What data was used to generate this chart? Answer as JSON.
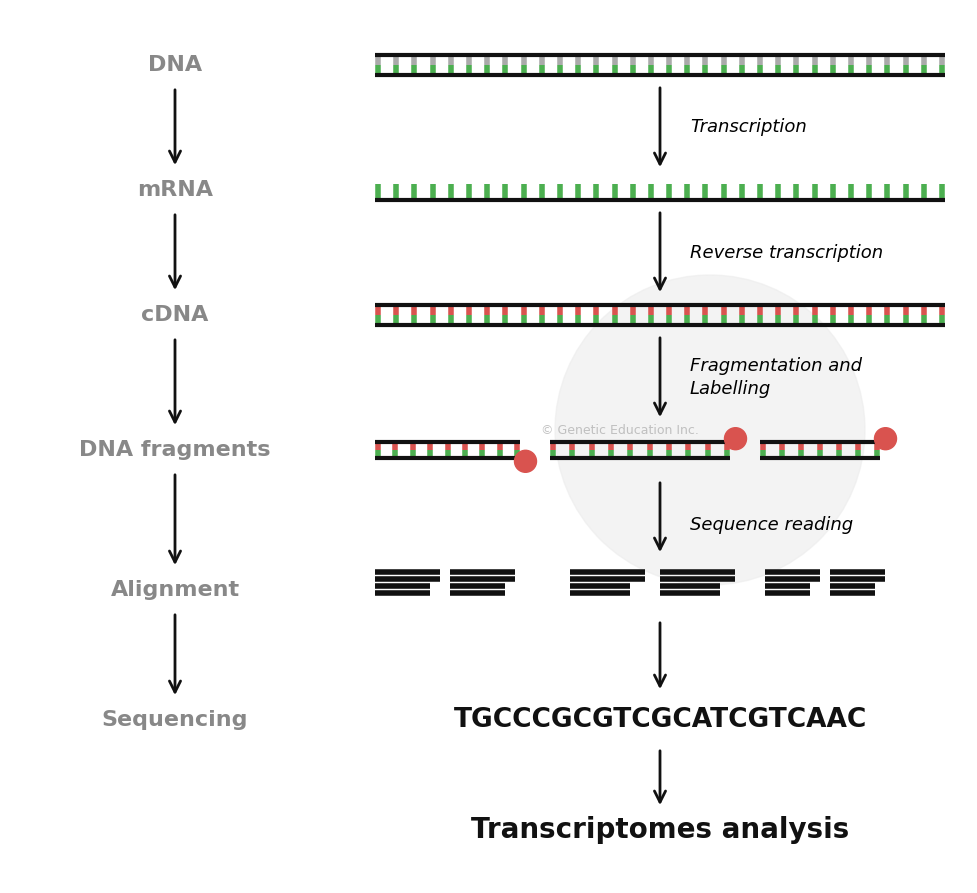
{
  "bg_color": "#ffffff",
  "left_labels": [
    "DNA",
    "mRNA",
    "cDNA",
    "DNA fragments",
    "Alignment",
    "Sequencing"
  ],
  "left_label_color": "#888888",
  "watermark": "© Genetic Education Inc.",
  "sequence_text": "TGCCCGCGTCGCATCGTCAAC",
  "transcriptomes_text": "Transcriptomes analysis",
  "green_color": "#4caf50",
  "red_color": "#d9534f",
  "grey_rung": "#aaaaaa",
  "black": "#111111"
}
